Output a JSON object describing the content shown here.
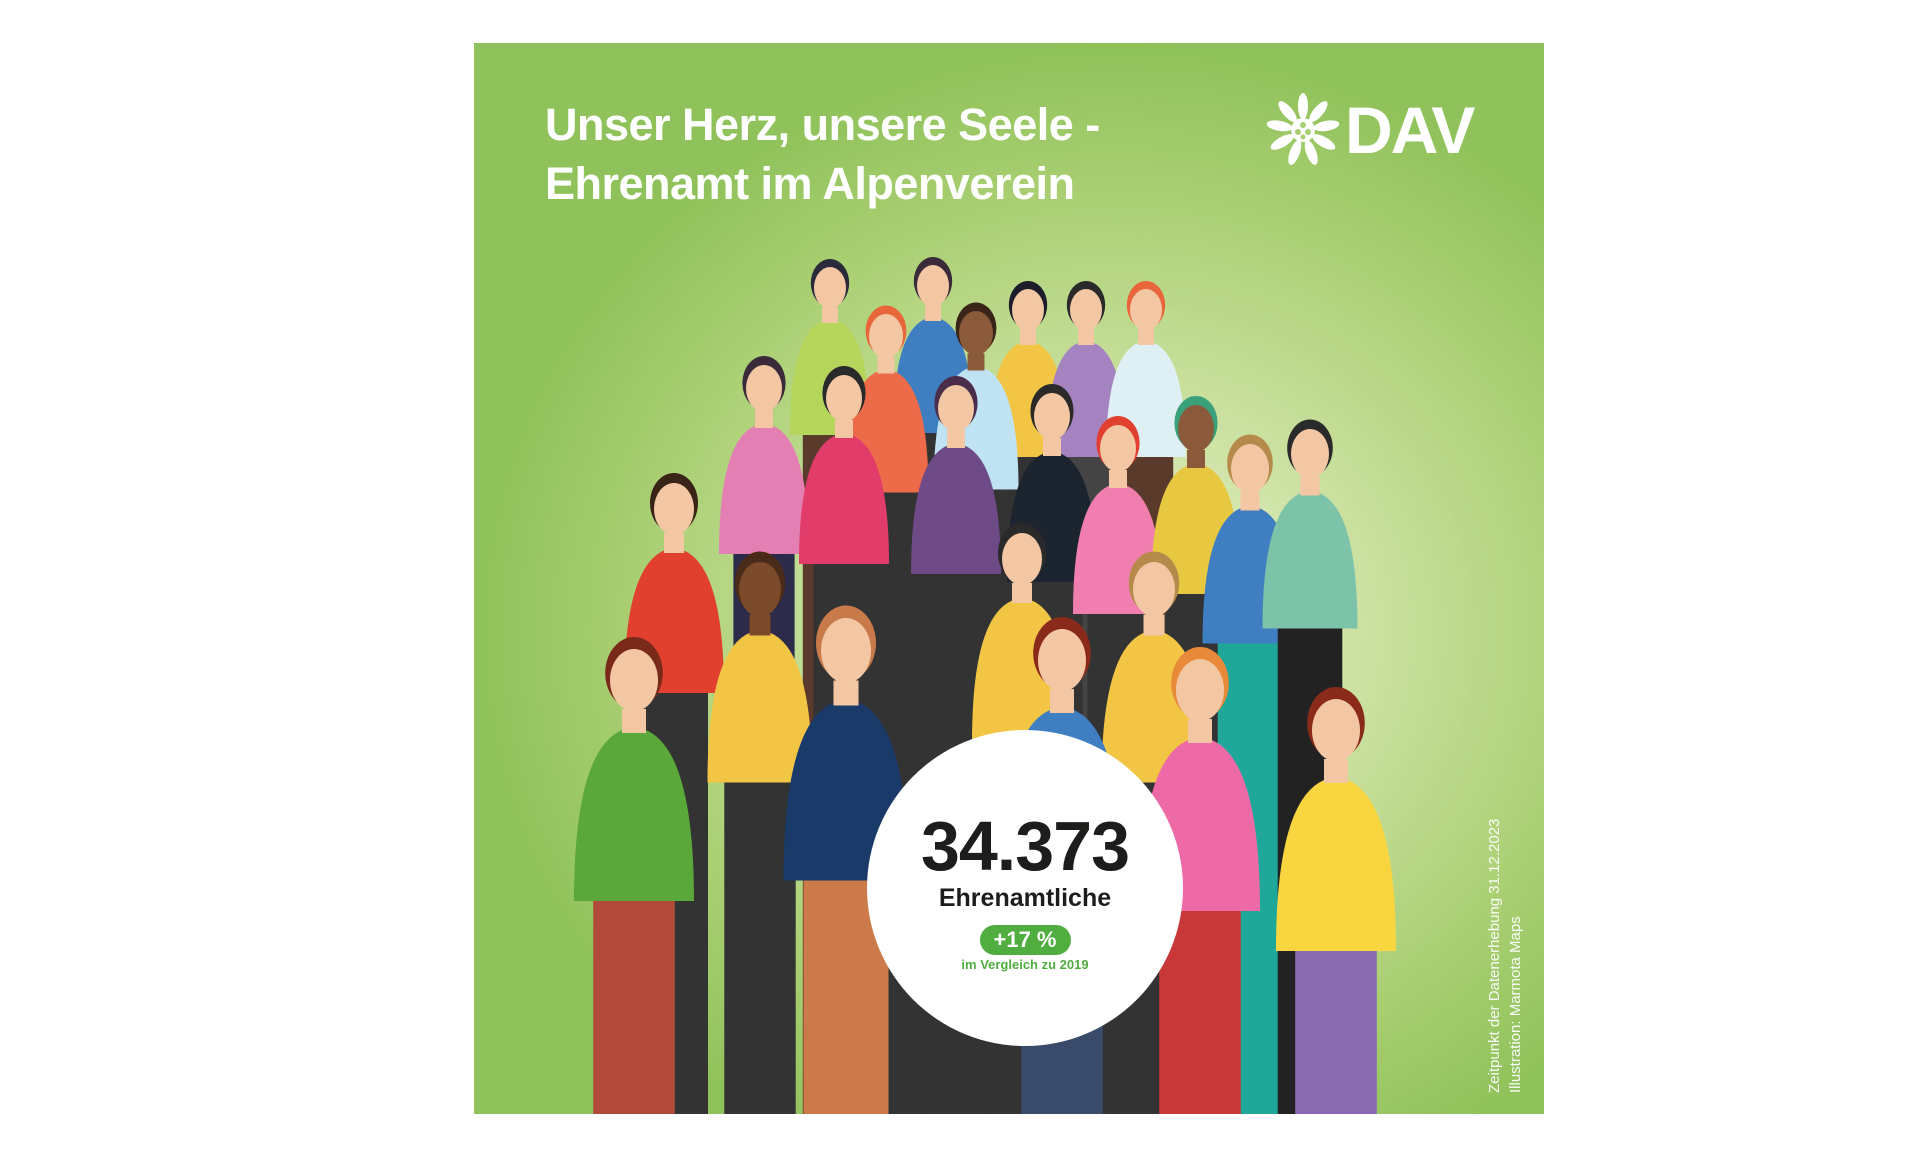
{
  "poster": {
    "title_line1": "Unser Herz, unsere Seele -",
    "title_line2": "Ehrenamt im Alpenverein",
    "logo_text": "DAV",
    "logo_icon": "edelweiss-icon",
    "count": "34.373",
    "count_label": "Ehrenamtliche",
    "change_badge": "+17 %",
    "compare_text": "im Vergleich zu 2019",
    "footnote_line1": "Zeitpunkt der Datenerhebung 31.12.2023",
    "footnote_line2": "Illustration: Marmota Maps",
    "colors": {
      "background": "#a9cf72",
      "accent_green": "#4fae3f",
      "text_dark": "#1d1d1b"
    }
  }
}
